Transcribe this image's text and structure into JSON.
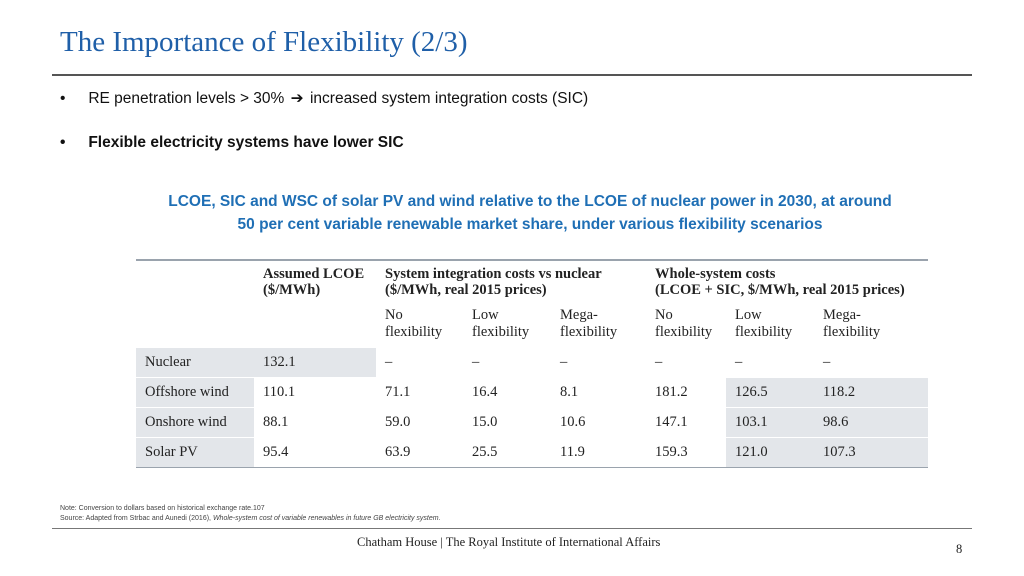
{
  "slide": {
    "title": "The Importance of Flexibility (2/3)",
    "bullets": [
      {
        "text_before": "RE penetration levels > 30%",
        "arrow": "➔",
        "text_after": "increased system integration costs (SIC)"
      },
      {
        "text": "Flexible electricity systems have lower SIC"
      }
    ],
    "bullet_symbol": "•",
    "chart_title_line1": "LCOE, SIC and WSC of solar PV and wind relative to the LCOE of nuclear power in 2030, at around",
    "chart_title_line2": "50 per cent variable renewable market share, under various flexibility scenarios"
  },
  "table": {
    "group_headers": {
      "lcoe_line1": "Assumed LCOE",
      "lcoe_line2": "($/MWh)",
      "sic_line1": "System integration costs vs nuclear",
      "sic_line2": "($/MWh, real 2015 prices)",
      "wsc_line1": "Whole-system costs",
      "wsc_line2": "(LCOE + SIC, $/MWh, real 2015 prices)"
    },
    "sub_headers": [
      {
        "line1": "No",
        "line2": "flexibility"
      },
      {
        "line1": "Low",
        "line2": "flexibility"
      },
      {
        "line1": "Mega-",
        "line2": "flexibility"
      },
      {
        "line1": "No",
        "line2": "flexibility"
      },
      {
        "line1": "Low",
        "line2": "flexibility"
      },
      {
        "line1": "Mega-",
        "line2": "flexibility"
      }
    ],
    "rows": [
      {
        "label": "Nuclear",
        "lcoe": "132.1",
        "sic_no": "–",
        "sic_low": "–",
        "sic_mega": "–",
        "wsc_no": "–",
        "wsc_low": "–",
        "wsc_mega": "–"
      },
      {
        "label": "Offshore wind",
        "lcoe": "110.1",
        "sic_no": "71.1",
        "sic_low": "16.4",
        "sic_mega": "8.1",
        "wsc_no": "181.2",
        "wsc_low": "126.5",
        "wsc_mega": "118.2"
      },
      {
        "label": "Onshore wind",
        "lcoe": "88.1",
        "sic_no": "59.0",
        "sic_low": "15.0",
        "sic_mega": "10.6",
        "wsc_no": "147.1",
        "wsc_low": "103.1",
        "wsc_mega": "98.6"
      },
      {
        "label": "Solar PV",
        "lcoe": "95.4",
        "sic_no": "63.9",
        "sic_low": "25.5",
        "sic_mega": "11.9",
        "wsc_no": "159.3",
        "wsc_low": "121.0",
        "wsc_mega": "107.3"
      }
    ]
  },
  "notes": {
    "note": "Note: Conversion to dollars based on historical exchange rate.107",
    "source_prefix": "Source: Adapted from Strbac and Aunedi (2016), ",
    "source_italic": "Whole-system cost of variable renewables in future GB electricity system."
  },
  "footer": {
    "organization": "Chatham House | The Royal Institute of International Affairs",
    "page_number": "8"
  },
  "colors": {
    "title": "#1f5fa8",
    "chart_title": "#1f6fb5",
    "table_shade": "#e3e6ea"
  }
}
